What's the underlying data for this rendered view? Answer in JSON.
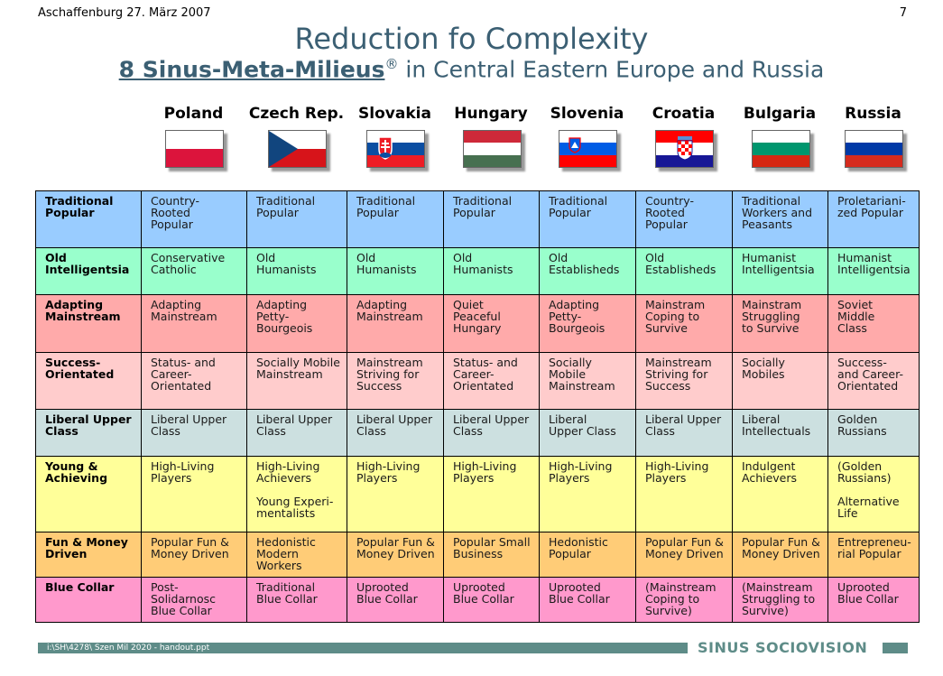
{
  "header": {
    "location_date": "Aschaffenburg 27. März 2007",
    "page_number": "7"
  },
  "title": {
    "line1": "Reduction fo Complexity",
    "line2_underlined": "8 Sinus-Meta-Milieus",
    "line2_reg": "®",
    "line2_rest": " in Central Eastern Europe and Russia"
  },
  "countries": [
    {
      "name": "Poland",
      "flag": [
        {
          "c": "#ffffff",
          "h": 50
        },
        {
          "c": "#dc143c",
          "h": 50
        }
      ]
    },
    {
      "name": "Czech Rep.",
      "flag": "czech"
    },
    {
      "name": "Slovakia",
      "flag": [
        {
          "c": "#ffffff",
          "h": 33.4
        },
        {
          "c": "#0b4ea2",
          "h": 33.3
        },
        {
          "c": "#ee1c25",
          "h": 33.3
        }
      ],
      "emblem": "slovak"
    },
    {
      "name": "Hungary",
      "flag": [
        {
          "c": "#ce2939",
          "h": 33.4
        },
        {
          "c": "#ffffff",
          "h": 33.3
        },
        {
          "c": "#477050",
          "h": 33.3
        }
      ]
    },
    {
      "name": "Slovenia",
      "flag": [
        {
          "c": "#ffffff",
          "h": 33.4
        },
        {
          "c": "#005ce5",
          "h": 33.3
        },
        {
          "c": "#ff0000",
          "h": 33.3
        }
      ],
      "emblem": "slovene"
    },
    {
      "name": "Croatia",
      "flag": [
        {
          "c": "#ff0000",
          "h": 33.4
        },
        {
          "c": "#ffffff",
          "h": 33.3
        },
        {
          "c": "#171796",
          "h": 33.3
        }
      ],
      "emblem": "croat"
    },
    {
      "name": "Bulgaria",
      "flag": [
        {
          "c": "#ffffff",
          "h": 33.4
        },
        {
          "c": "#00966e",
          "h": 33.3
        },
        {
          "c": "#d62612",
          "h": 33.3
        }
      ]
    },
    {
      "name": "Russia",
      "flag": [
        {
          "c": "#ffffff",
          "h": 33.4
        },
        {
          "c": "#0039a6",
          "h": 33.3
        },
        {
          "c": "#d52b1e",
          "h": 33.3
        }
      ]
    }
  ],
  "rows": [
    {
      "label": "Traditional Popular",
      "color": "#99ccff",
      "height": 63,
      "cells": [
        "Country-\nRooted\nPopular",
        "Traditional\nPopular",
        "Traditional\nPopular",
        "Traditional\nPopular",
        "Traditional\nPopular",
        "Country-\nRooted\nPopular",
        "Traditional\nWorkers and\nPeasants",
        "Proletariani-\nzed Popular"
      ]
    },
    {
      "label": "Old Intelligentsia",
      "color": "#99ffcc",
      "height": 52,
      "cells": [
        "Conservative\nCatholic",
        "Old\nHumanists",
        "Old\nHumanists",
        "Old\nHumanists",
        "Old\nEstablisheds",
        "Old\nEstablisheds",
        "Humanist\nIntelligentsia",
        "Humanist\nIntelligentsia"
      ]
    },
    {
      "label": "Adapting Mainstream",
      "color": "#ffaaaa",
      "height": 64,
      "cells": [
        "Adapting\nMainstream",
        "Adapting\nPetty-\nBourgeois",
        "Adapting\nMainstream",
        "Quiet\nPeaceful\nHungary",
        "Adapting\nPetty-\nBourgeois",
        "Mainstram\nCoping to\nSurvive",
        "Mainstram\nStruggling\nto Survive",
        "Soviet\nMiddle\nClass"
      ]
    },
    {
      "label": "Success-\nOrientated",
      "color": "#ffcccc",
      "height": 63,
      "cells": [
        "Status- and\nCareer-\nOrientated",
        "Socially Mobile\nMainstream",
        "Mainstream\nStriving for\nSuccess",
        "Status- and\nCareer-\nOrientated",
        "Socially\nMobile\nMainstream",
        "Mainstream\nStriving for\nSuccess",
        "Socially\nMobiles",
        "Success-\nand Career-\nOrientated"
      ]
    },
    {
      "label": "Liberal Upper\nClass",
      "color": "#cce0e0",
      "height": 52,
      "cells": [
        "Liberal Upper\nClass",
        "Liberal Upper\nClass",
        "Liberal Upper\nClass",
        "Liberal Upper\nClass",
        "Liberal\nUpper Class",
        "Liberal Upper\nClass",
        "Liberal\nIntellectuals",
        "Golden\nRussians"
      ]
    },
    {
      "label": "Young &\nAchieving",
      "color": "#ffff99",
      "height": 84,
      "cells": [
        "High-Living\nPlayers",
        "High-Living\nAchievers\n\nYoung Experi-\nmentalists",
        "High-Living\nPlayers",
        "High-Living\nPlayers",
        "High-Living\nPlayers",
        "High-Living\nPlayers",
        "Indulgent\nAchievers",
        "(Golden\nRussians)\n\nAlternative\nLife"
      ]
    },
    {
      "label": "Fun & Money\nDriven",
      "color": "#ffcc77",
      "height": 50,
      "cells": [
        "Popular Fun &\nMoney Driven",
        "Hedonistic\nModern\nWorkers",
        "Popular Fun &\nMoney Driven",
        "Popular Small\nBusiness",
        "Hedonistic\nPopular",
        "Popular Fun &\nMoney Driven",
        "Popular Fun &\nMoney Driven",
        "Entrepreneu-\nrial Popular"
      ]
    },
    {
      "label": "Blue Collar",
      "color": "#ff99cc",
      "height": 50,
      "cells": [
        "Post-\nSolidarnosc\nBlue Collar",
        "Traditional\nBlue Collar",
        "Uprooted\nBlue Collar",
        "Uprooted\nBlue Collar",
        "Uprooted\nBlue Collar",
        "(Mainstream\nCoping to\nSurvive)",
        "(Mainstream\nStruggling to\nSurvive)",
        "Uprooted\nBlue Collar"
      ]
    }
  ],
  "footer": {
    "file_path": "i:\\SH\\4278\\ Szen Mil 2020 - handout.ppt",
    "brand": "SINUS SOCIOVISION"
  }
}
